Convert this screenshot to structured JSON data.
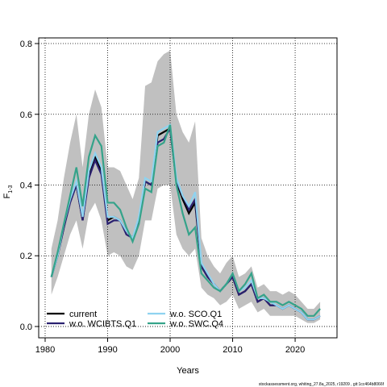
{
  "chart_data": {
    "type": "line",
    "x_label": "Years",
    "y_label": "F",
    "y_label_sub": "1-3",
    "footer": "stockassessment.org, whiting_27.8a_2025, r19209 , git:1cc464b8066f",
    "x": [
      1981,
      1982,
      1983,
      1984,
      1985,
      1986,
      1987,
      1988,
      1989,
      1990,
      1991,
      1992,
      1993,
      1994,
      1995,
      1996,
      1997,
      1998,
      1999,
      2000,
      2001,
      2002,
      2003,
      2004,
      2005,
      2006,
      2007,
      2008,
      2009,
      2010,
      2011,
      2012,
      2013,
      2014,
      2015,
      2016,
      2017,
      2018,
      2019,
      2020,
      2021,
      2022,
      2023,
      2024
    ],
    "band": {
      "color": "#c0c0c0",
      "upper": [
        0.22,
        0.3,
        0.42,
        0.52,
        0.6,
        0.45,
        0.6,
        0.67,
        0.62,
        0.45,
        0.45,
        0.44,
        0.4,
        0.36,
        0.42,
        0.68,
        0.69,
        0.75,
        0.77,
        0.78,
        0.6,
        0.55,
        0.52,
        0.58,
        0.25,
        0.2,
        0.17,
        0.15,
        0.18,
        0.2,
        0.14,
        0.15,
        0.17,
        0.11,
        0.12,
        0.1,
        0.1,
        0.09,
        0.1,
        0.09,
        0.07,
        0.05,
        0.05,
        0.07
      ],
      "lower": [
        0.09,
        0.14,
        0.2,
        0.26,
        0.3,
        0.22,
        0.32,
        0.35,
        0.3,
        0.2,
        0.21,
        0.2,
        0.17,
        0.16,
        0.2,
        0.3,
        0.3,
        0.39,
        0.4,
        0.4,
        0.26,
        0.22,
        0.2,
        0.22,
        0.11,
        0.09,
        0.08,
        0.06,
        0.07,
        0.09,
        0.05,
        0.06,
        0.07,
        0.04,
        0.05,
        0.03,
        0.03,
        0.03,
        0.03,
        0.03,
        0.02,
        0.01,
        0.01,
        0.02
      ]
    },
    "series": [
      {
        "name": "current",
        "color": "#000000",
        "values": [
          0.14,
          0.2,
          0.28,
          0.36,
          0.4,
          0.3,
          0.43,
          0.48,
          0.44,
          0.3,
          0.31,
          0.3,
          0.27,
          0.25,
          0.3,
          0.41,
          0.4,
          0.54,
          0.55,
          0.56,
          0.41,
          0.36,
          0.32,
          0.35,
          0.17,
          0.14,
          0.12,
          0.1,
          0.12,
          0.14,
          0.09,
          0.1,
          0.12,
          0.07,
          0.08,
          0.06,
          0.06,
          0.05,
          0.06,
          0.05,
          0.04,
          0.02,
          0.02,
          0.03
        ]
      },
      {
        "name": "w.o. WCIBTS.Q1",
        "color": "#2a2170",
        "values": [
          0.14,
          0.2,
          0.28,
          0.35,
          0.4,
          0.3,
          0.42,
          0.47,
          0.43,
          0.29,
          0.3,
          0.3,
          0.26,
          0.25,
          0.3,
          0.41,
          0.4,
          0.52,
          0.53,
          0.56,
          0.41,
          0.37,
          0.33,
          0.36,
          0.17,
          0.14,
          0.12,
          0.1,
          0.12,
          0.14,
          0.09,
          0.1,
          0.12,
          0.07,
          0.08,
          0.06,
          0.06,
          0.05,
          0.06,
          0.05,
          0.04,
          0.02,
          0.02,
          0.03
        ]
      },
      {
        "name": "w.o. SCO.Q1",
        "color": "#8fd3f0",
        "values": [
          0.14,
          0.2,
          0.29,
          0.36,
          0.41,
          0.31,
          0.44,
          0.49,
          0.45,
          0.31,
          0.31,
          0.3,
          0.27,
          0.25,
          0.31,
          0.42,
          0.41,
          0.55,
          0.56,
          0.57,
          0.42,
          0.37,
          0.34,
          0.38,
          0.18,
          0.15,
          0.12,
          0.1,
          0.12,
          0.15,
          0.1,
          0.11,
          0.13,
          0.08,
          0.08,
          0.07,
          0.06,
          0.05,
          0.06,
          0.05,
          0.04,
          0.02,
          0.02,
          0.03
        ]
      },
      {
        "name": "w.o. SWC.Q4",
        "color": "#35a38a",
        "values": [
          0.14,
          0.21,
          0.29,
          0.37,
          0.45,
          0.34,
          0.48,
          0.54,
          0.51,
          0.35,
          0.35,
          0.33,
          0.28,
          0.24,
          0.29,
          0.39,
          0.38,
          0.51,
          0.52,
          0.57,
          0.4,
          0.32,
          0.26,
          0.28,
          0.15,
          0.13,
          0.11,
          0.1,
          0.12,
          0.15,
          0.1,
          0.12,
          0.15,
          0.08,
          0.09,
          0.07,
          0.07,
          0.06,
          0.07,
          0.06,
          0.05,
          0.03,
          0.03,
          0.05
        ]
      }
    ],
    "xlim": [
      1978.97,
      2026.7
    ],
    "ylim": [
      -0.032,
      0.816
    ],
    "xticks": [
      1980,
      1990,
      2000,
      2010,
      2020
    ],
    "yticks": [
      {
        "value": 0,
        "label": "0.0"
      },
      0.2,
      0.4,
      0.6,
      0.8
    ],
    "grid": true,
    "legend": "bottom-left"
  }
}
